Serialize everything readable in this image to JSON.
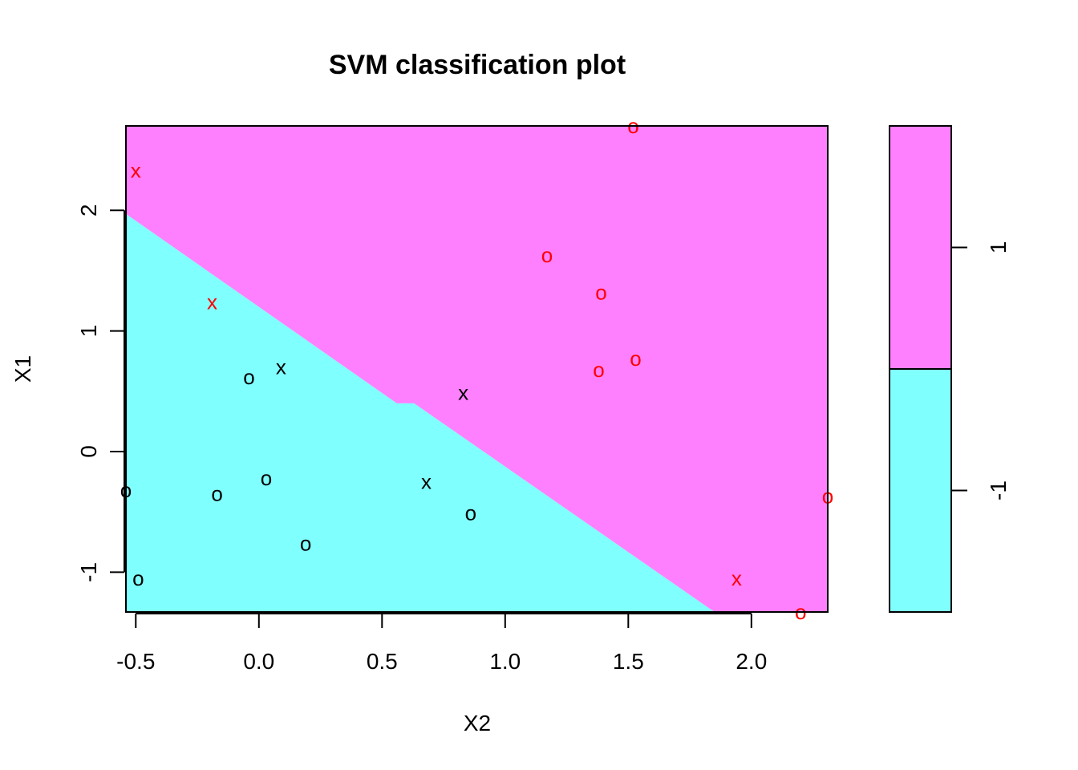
{
  "chart_data": {
    "type": "scatter",
    "title": "SVM classification plot",
    "xlabel": "X2",
    "ylabel": "X1",
    "xlim": [
      -0.54,
      2.31
    ],
    "ylim": [
      -1.33,
      2.7
    ],
    "xticks": [
      {
        "value": -0.5,
        "label": "-0.5"
      },
      {
        "value": 0.0,
        "label": "0.0"
      },
      {
        "value": 0.5,
        "label": "0.5"
      },
      {
        "value": 1.0,
        "label": "1.0"
      },
      {
        "value": 1.5,
        "label": "1.5"
      },
      {
        "value": 2.0,
        "label": "2.0"
      }
    ],
    "yticks": [
      {
        "value": -1,
        "label": "-1"
      },
      {
        "value": 0,
        "label": "0"
      },
      {
        "value": 1,
        "label": "1"
      },
      {
        "value": 2,
        "label": "2"
      }
    ],
    "decision_boundary": [
      {
        "x": -0.54,
        "y": 1.97
      },
      {
        "x": 0.56,
        "y": 0.4
      },
      {
        "x": 0.63,
        "y": 0.4
      },
      {
        "x": 1.85,
        "y": -1.33
      }
    ],
    "regions": [
      {
        "class": "1",
        "color": "#ff80ff",
        "side": "upper-right"
      },
      {
        "class": "-1",
        "color": "#80ffff",
        "side": "lower-left"
      }
    ],
    "legend": {
      "placement": "right",
      "entries": [
        {
          "label": "1",
          "color": "#ff80ff"
        },
        {
          "label": "-1",
          "color": "#80ffff"
        }
      ]
    },
    "points": [
      {
        "x": -0.5,
        "y": 2.33,
        "marker": "x",
        "color": "#ff0000"
      },
      {
        "x": 1.52,
        "y": 2.7,
        "marker": "o",
        "color": "#ff0000"
      },
      {
        "x": -0.19,
        "y": 1.24,
        "marker": "x",
        "color": "#ff0000"
      },
      {
        "x": 1.17,
        "y": 1.63,
        "marker": "o",
        "color": "#ff0000"
      },
      {
        "x": 1.39,
        "y": 1.32,
        "marker": "o",
        "color": "#ff0000"
      },
      {
        "x": 1.38,
        "y": 0.68,
        "marker": "o",
        "color": "#ff0000"
      },
      {
        "x": 1.53,
        "y": 0.77,
        "marker": "o",
        "color": "#ff0000"
      },
      {
        "x": 2.31,
        "y": -0.37,
        "marker": "o",
        "color": "#ff0000"
      },
      {
        "x": 1.94,
        "y": -1.05,
        "marker": "x",
        "color": "#ff0000"
      },
      {
        "x": 2.2,
        "y": -1.33,
        "marker": "o",
        "color": "#ff0000"
      },
      {
        "x": -0.04,
        "y": 0.62,
        "marker": "o",
        "color": "#000000"
      },
      {
        "x": 0.09,
        "y": 0.7,
        "marker": "x",
        "color": "#000000"
      },
      {
        "x": 0.83,
        "y": 0.49,
        "marker": "x",
        "color": "#000000"
      },
      {
        "x": -0.54,
        "y": -0.32,
        "marker": "o",
        "color": "#000000"
      },
      {
        "x": -0.17,
        "y": -0.35,
        "marker": "o",
        "color": "#000000"
      },
      {
        "x": 0.03,
        "y": -0.22,
        "marker": "o",
        "color": "#000000"
      },
      {
        "x": 0.68,
        "y": -0.25,
        "marker": "x",
        "color": "#000000"
      },
      {
        "x": 0.86,
        "y": -0.51,
        "marker": "o",
        "color": "#000000"
      },
      {
        "x": 0.19,
        "y": -0.76,
        "marker": "o",
        "color": "#000000"
      },
      {
        "x": -0.49,
        "y": -1.05,
        "marker": "o",
        "color": "#000000"
      }
    ]
  }
}
